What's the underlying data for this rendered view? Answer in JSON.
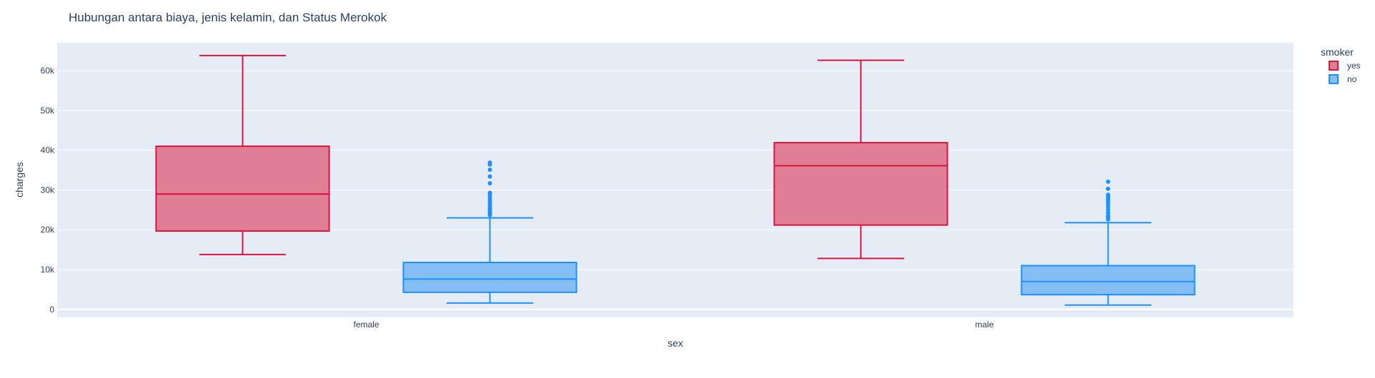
{
  "chart_data": {
    "type": "box",
    "title": "Hubungan antara biaya, jenis kelamin, dan  Status Merokok",
    "xlabel": "sex",
    "ylabel": "charges",
    "categories": [
      "female",
      "male"
    ],
    "ylim": [
      -2000,
      67000
    ],
    "yticks": [
      0,
      10000,
      20000,
      30000,
      40000,
      50000,
      60000
    ],
    "ytick_labels": [
      "0",
      "10k",
      "20k",
      "30k",
      "40k",
      "50k",
      "60k"
    ],
    "legend": {
      "title": "smoker",
      "position": "top-right"
    },
    "grid": true,
    "series": [
      {
        "name": "yes",
        "color": "#dc143c",
        "fill": "#e07e95",
        "boxes": [
          {
            "category": "female",
            "lower_fence": 13800,
            "q1": 19700,
            "median": 29000,
            "q3": 41000,
            "upper_fence": 63800,
            "outliers": []
          },
          {
            "category": "male",
            "lower_fence": 12800,
            "q1": 21200,
            "median": 36100,
            "q3": 41900,
            "upper_fence": 62600,
            "outliers": []
          }
        ]
      },
      {
        "name": "no",
        "color": "#1e90ff",
        "fill": "#84bef5",
        "boxes": [
          {
            "category": "female",
            "lower_fence": 1600,
            "q1": 4300,
            "median": 7600,
            "q3": 11800,
            "upper_fence": 23000,
            "outliers": [
              23700,
              24100,
              24500,
              24900,
              25300,
              25800,
              26300,
              26900,
              27500,
              28200,
              28900,
              29300,
              31700,
              33400,
              35100,
              36400,
              36900
            ]
          },
          {
            "category": "male",
            "lower_fence": 1100,
            "q1": 3700,
            "median": 7000,
            "q3": 11000,
            "upper_fence": 21800,
            "outliers": [
              22600,
              23100,
              23500,
              24200,
              25000,
              25800,
              26500,
              27200,
              27800,
              28300,
              28800,
              30300,
              32100
            ]
          }
        ]
      }
    ]
  }
}
